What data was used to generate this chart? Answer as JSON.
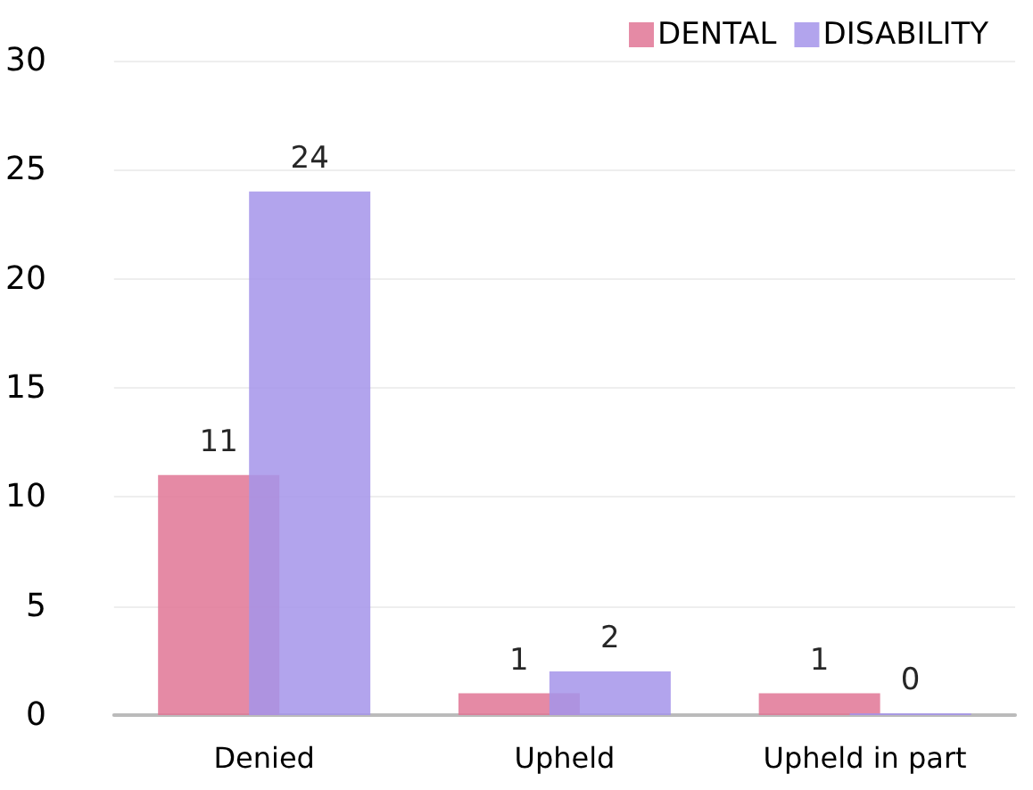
{
  "chart_data": {
    "type": "bar",
    "categories": [
      "Denied",
      "Upheld",
      "Upheld in part"
    ],
    "series": [
      {
        "name": "DENTAL",
        "color": "#e07595",
        "values": [
          11,
          1,
          1
        ]
      },
      {
        "name": "DISABILITY",
        "color": "#a594ea",
        "values": [
          24,
          2,
          0
        ]
      }
    ],
    "ylim": [
      0,
      30
    ],
    "yticks": [
      0,
      5,
      10,
      15,
      20,
      25,
      30
    ],
    "grid": "y",
    "legend": "top right",
    "data_labels": true
  }
}
